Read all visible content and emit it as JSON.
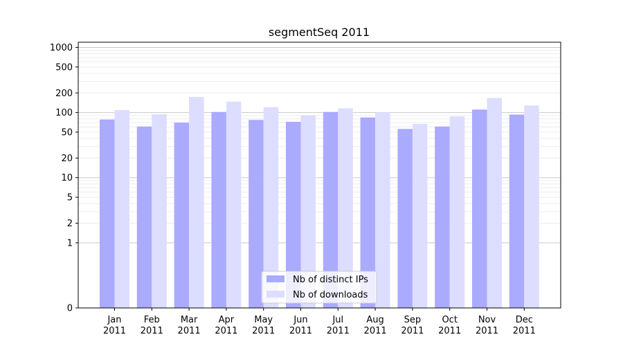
{
  "chart_data": {
    "type": "bar",
    "title": "segmentSeq 2011",
    "xlabel": "",
    "ylabel": "",
    "y_scale": "symlog",
    "ylim": [
      0,
      1200
    ],
    "y_ticks": [
      {
        "value": 0,
        "label": "0"
      },
      {
        "value": 1,
        "label": "1"
      },
      {
        "value": 2,
        "label": "2"
      },
      {
        "value": 5,
        "label": "5"
      },
      {
        "value": 10,
        "label": "10"
      },
      {
        "value": 20,
        "label": "20"
      },
      {
        "value": 50,
        "label": "50"
      },
      {
        "value": 100,
        "label": "100"
      },
      {
        "value": 200,
        "label": "200"
      },
      {
        "value": 500,
        "label": "500"
      },
      {
        "value": 1000,
        "label": "1000"
      }
    ],
    "grid": true,
    "legend_position": "bottom-center",
    "categories": [
      {
        "month": "Jan",
        "year": "2011"
      },
      {
        "month": "Feb",
        "year": "2011"
      },
      {
        "month": "Mar",
        "year": "2011"
      },
      {
        "month": "Apr",
        "year": "2011"
      },
      {
        "month": "May",
        "year": "2011"
      },
      {
        "month": "Jun",
        "year": "2011"
      },
      {
        "month": "Jul",
        "year": "2011"
      },
      {
        "month": "Aug",
        "year": "2011"
      },
      {
        "month": "Sep",
        "year": "2011"
      },
      {
        "month": "Oct",
        "year": "2011"
      },
      {
        "month": "Nov",
        "year": "2011"
      },
      {
        "month": "Dec",
        "year": "2011"
      }
    ],
    "series": [
      {
        "name": "Nb of distinct IPs",
        "color": "#aaaaff",
        "values": [
          78,
          61,
          70,
          102,
          77,
          72,
          102,
          84,
          56,
          61,
          111,
          93
        ]
      },
      {
        "name": "Nb of downloads",
        "color": "#ddddff",
        "values": [
          109,
          94,
          173,
          147,
          121,
          91,
          116,
          101,
          67,
          87,
          167,
          128
        ]
      }
    ]
  }
}
